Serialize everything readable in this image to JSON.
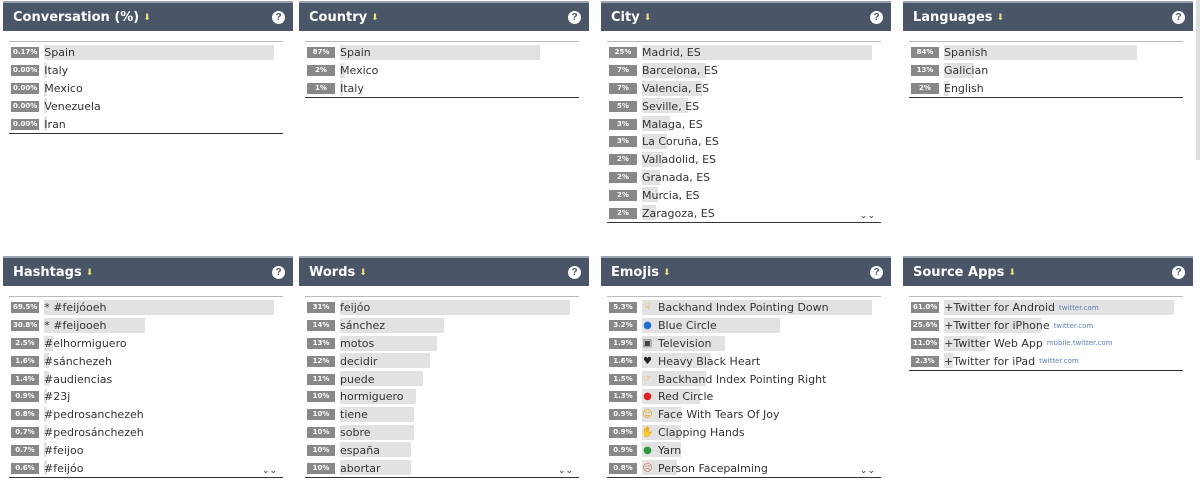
{
  "panels": [
    {
      "title": "Conversation (%)",
      "rows": [
        {
          "pct": "0.17%",
          "label": "Spain",
          "frac": 1.0
        },
        {
          "pct": "0.00%",
          "label": "Italy",
          "frac": 0.0
        },
        {
          "pct": "0.00%",
          "label": "Mexico",
          "frac": 0.0
        },
        {
          "pct": "0.00%",
          "label": "Venezuela",
          "frac": 0.0
        },
        {
          "pct": "0.00%",
          "label": "Iran",
          "frac": 0.0
        }
      ]
    },
    {
      "title": "Country",
      "rows": [
        {
          "pct": "87%",
          "label": "Spain",
          "frac": 0.87
        },
        {
          "pct": "2%",
          "label": "Mexico",
          "frac": 0.02
        },
        {
          "pct": "1%",
          "label": "Italy",
          "frac": 0.01
        }
      ]
    },
    {
      "title": "City",
      "more": true,
      "rows": [
        {
          "pct": "25%",
          "label": "Madrid, ES",
          "frac": 1.0
        },
        {
          "pct": "7%",
          "label": "Barcelona, ES",
          "frac": 0.28
        },
        {
          "pct": "7%",
          "label": "Valencia, ES",
          "frac": 0.26
        },
        {
          "pct": "5%",
          "label": "Seville, ES",
          "frac": 0.2
        },
        {
          "pct": "3%",
          "label": "Malaga, ES",
          "frac": 0.12
        },
        {
          "pct": "3%",
          "label": "La Coruña, ES",
          "frac": 0.11
        },
        {
          "pct": "2%",
          "label": "Valladolid, ES",
          "frac": 0.09
        },
        {
          "pct": "2%",
          "label": "Granada, ES",
          "frac": 0.08
        },
        {
          "pct": "2%",
          "label": "Murcia, ES",
          "frac": 0.07
        },
        {
          "pct": "2%",
          "label": "Zaragoza, ES",
          "frac": 0.06
        }
      ]
    },
    {
      "title": "Languages",
      "rows": [
        {
          "pct": "84%",
          "label": "Spanish",
          "frac": 0.84
        },
        {
          "pct": "13%",
          "label": "Galician",
          "frac": 0.13
        },
        {
          "pct": "2%",
          "label": "English",
          "frac": 0.02
        }
      ]
    },
    {
      "title": "Hashtags",
      "more": true,
      "rows": [
        {
          "pct": "69.5%",
          "label": "* #feijóoeh",
          "frac": 1.0
        },
        {
          "pct": "30.8%",
          "label": "* #feijooeh",
          "frac": 0.44
        },
        {
          "pct": "2.5%",
          "label": "#elhormiguero",
          "frac": 0.04
        },
        {
          "pct": "1.6%",
          "label": "#sánchezeh",
          "frac": 0.02
        },
        {
          "pct": "1.4%",
          "label": "#audiencias",
          "frac": 0.02
        },
        {
          "pct": "0.9%",
          "label": "#23j",
          "frac": 0.01
        },
        {
          "pct": "0.8%",
          "label": "#pedrosanchezeh",
          "frac": 0.01
        },
        {
          "pct": "0.7%",
          "label": "#pedrosánchezeh",
          "frac": 0.01
        },
        {
          "pct": "0.7%",
          "label": "#feijoo",
          "frac": 0.01
        },
        {
          "pct": "0.6%",
          "label": "#feijóo",
          "frac": 0.01
        }
      ]
    },
    {
      "title": "Words",
      "more": true,
      "rows": [
        {
          "pct": "31%",
          "label": "feijóo",
          "frac": 1.0
        },
        {
          "pct": "14%",
          "label": "sánchez",
          "frac": 0.45
        },
        {
          "pct": "13%",
          "label": "motos",
          "frac": 0.42
        },
        {
          "pct": "12%",
          "label": "decidir",
          "frac": 0.39
        },
        {
          "pct": "11%",
          "label": "puede",
          "frac": 0.36
        },
        {
          "pct": "10%",
          "label": "hormiguero",
          "frac": 0.33
        },
        {
          "pct": "10%",
          "label": "tiene",
          "frac": 0.32
        },
        {
          "pct": "10%",
          "label": "sobre",
          "frac": 0.32
        },
        {
          "pct": "10%",
          "label": "españa",
          "frac": 0.31
        },
        {
          "pct": "10%",
          "label": "abortar",
          "frac": 0.31
        }
      ]
    },
    {
      "title": "Emojis",
      "more": true,
      "rows": [
        {
          "pct": "5.3%",
          "label": "Backhand Index Pointing Down",
          "frac": 1.0,
          "icon": "☟",
          "color": "#e0a400"
        },
        {
          "pct": "3.2%",
          "label": "Blue Circle",
          "frac": 0.6,
          "icon": "●",
          "color": "#1f6fd0"
        },
        {
          "pct": "1.9%",
          "label": "Television",
          "frac": 0.36,
          "icon": "▣",
          "color": "#444"
        },
        {
          "pct": "1.6%",
          "label": "Heavy Black Heart",
          "frac": 0.3,
          "icon": "♥",
          "color": "#222"
        },
        {
          "pct": "1.5%",
          "label": "Backhand Index Pointing Right",
          "frac": 0.28,
          "icon": "☞",
          "color": "#e0a400"
        },
        {
          "pct": "1.3%",
          "label": "Red Circle",
          "frac": 0.25,
          "icon": "●",
          "color": "#e02020"
        },
        {
          "pct": "0.9%",
          "label": "Face With Tears Of Joy",
          "frac": 0.17,
          "icon": "☺",
          "color": "#e0a400"
        },
        {
          "pct": "0.9%",
          "label": "Clapping Hands",
          "frac": 0.17,
          "icon": "✋",
          "color": "#e0a400"
        },
        {
          "pct": "0.9%",
          "label": "Yarn",
          "frac": 0.17,
          "icon": "●",
          "color": "#2a9a3a"
        },
        {
          "pct": "0.8%",
          "label": "Person Facepalming",
          "frac": 0.15,
          "icon": "☹",
          "color": "#c07050"
        }
      ]
    },
    {
      "title": "Source Apps",
      "rows": [
        {
          "pct": "61.0%",
          "label": "+Twitter for Android",
          "src": "twitter.com",
          "frac": 1.0
        },
        {
          "pct": "25.6%",
          "label": "+Twitter for iPhone",
          "src": "twitter.com",
          "frac": 0.42
        },
        {
          "pct": "11.0%",
          "label": "+Twitter Web App",
          "src": "mobile.twitter.com",
          "frac": 0.18
        },
        {
          "pct": "2.3%",
          "label": "+Twitter for iPad",
          "src": "twitter.com",
          "frac": 0.04
        }
      ]
    }
  ],
  "help_label": "?",
  "more_label": "⌄⌄"
}
